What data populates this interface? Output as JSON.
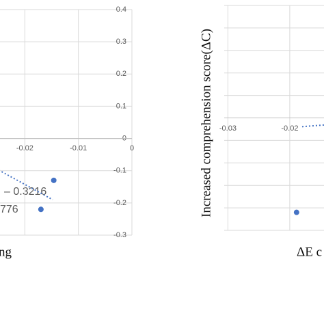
{
  "chart_data": [
    {
      "type": "scatter",
      "x_label": "ng",
      "annotations": [
        "– 0.3216",
        "776"
      ],
      "xlim": [
        -0.0249,
        0
      ],
      "ylim": [
        -0.3,
        0.4
      ],
      "xticks": [
        -0.02,
        -0.01,
        0
      ],
      "yticks": [
        0.4,
        0.3,
        0.2,
        0.1,
        0,
        -0.1,
        -0.2,
        -0.3
      ],
      "show_ytick_labels": true,
      "grid": true,
      "series": [
        {
          "color": "#4472c4",
          "x": [
            -0.0146,
            -0.017
          ],
          "values": [
            -0.13,
            -0.22
          ]
        },
        {
          "color": "#4472c4",
          "style": "trendline",
          "x": [
            -0.0249,
            -0.0148
          ],
          "values": [
            -0.098,
            -0.19
          ]
        }
      ]
    },
    {
      "type": "scatter",
      "y_label": "Increased comprehension score(ΔC)",
      "x_label": "ΔE c",
      "xlim": [
        -0.0306,
        -0.0138
      ],
      "ylim": [
        -5,
        5
      ],
      "xticks": [
        -0.03,
        -0.02
      ],
      "yticks": [
        5,
        4,
        3,
        2,
        1,
        0,
        -1,
        -2,
        -3,
        -4,
        -5
      ],
      "show_ytick_labels": false,
      "grid": true,
      "series": [
        {
          "color": "#4472c4",
          "x": [
            -0.0189
          ],
          "values": [
            -4.2
          ]
        },
        {
          "color": "#4472c4",
          "style": "trendline",
          "x": [
            -0.018,
            -0.0138
          ],
          "values": [
            -0.39,
            -0.3
          ]
        }
      ]
    }
  ]
}
